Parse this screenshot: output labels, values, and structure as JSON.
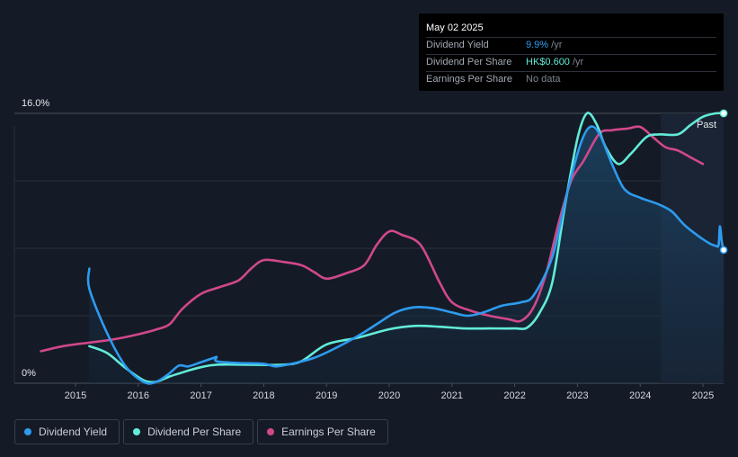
{
  "tooltip": {
    "date": "May 02 2025",
    "rows": [
      {
        "label": "Dividend Yield",
        "value": "9.9%",
        "suffix": " /yr"
      },
      {
        "label": "Dividend Per Share",
        "value": "HK$0.600",
        "suffix": " /yr"
      },
      {
        "label": "Earnings Per Share",
        "value": "No data",
        "suffix": ""
      }
    ]
  },
  "legend": [
    {
      "label": "Dividend Yield",
      "color": "#2d9bef"
    },
    {
      "label": "Dividend Per Share",
      "color": "#62ebd8"
    },
    {
      "label": "Earnings Per Share",
      "color": "#d0488b"
    }
  ],
  "chart_data": {
    "type": "line",
    "y_axis_labels": {
      "top": "16.0%",
      "bottom": "0%"
    },
    "ylim": [
      0,
      16
    ],
    "xlim": [
      2014.4,
      2025.33
    ],
    "x_ticks": [
      "2015",
      "2016",
      "2017",
      "2018",
      "2019",
      "2020",
      "2021",
      "2022",
      "2023",
      "2024",
      "2025"
    ],
    "past_label": "Past",
    "grid": true,
    "series": [
      {
        "name": "Dividend Yield",
        "color": "#2d9bef",
        "points": [
          [
            2015.22,
            6.8
          ],
          [
            2015.22,
            5.6
          ],
          [
            2015.5,
            3.0
          ],
          [
            2015.8,
            1.0
          ],
          [
            2016.1,
            0.05
          ],
          [
            2016.3,
            0.1
          ],
          [
            2016.5,
            0.6
          ],
          [
            2016.65,
            1.05
          ],
          [
            2016.8,
            1.0
          ],
          [
            2017.0,
            1.25
          ],
          [
            2017.2,
            1.5
          ],
          [
            2017.25,
            1.55
          ],
          [
            2017.25,
            1.3
          ],
          [
            2017.6,
            1.2
          ],
          [
            2018.0,
            1.15
          ],
          [
            2018.2,
            1.0
          ],
          [
            2018.5,
            1.2
          ],
          [
            2018.8,
            1.5
          ],
          [
            2019.1,
            2.0
          ],
          [
            2019.5,
            2.8
          ],
          [
            2019.8,
            3.5
          ],
          [
            2020.1,
            4.2
          ],
          [
            2020.4,
            4.5
          ],
          [
            2020.7,
            4.45
          ],
          [
            2021.0,
            4.2
          ],
          [
            2021.25,
            4.0
          ],
          [
            2021.5,
            4.2
          ],
          [
            2021.8,
            4.6
          ],
          [
            2022.1,
            4.8
          ],
          [
            2022.3,
            5.2
          ],
          [
            2022.6,
            7.5
          ],
          [
            2022.85,
            11.5
          ],
          [
            2023.05,
            14.2
          ],
          [
            2023.2,
            15.2
          ],
          [
            2023.35,
            14.8
          ],
          [
            2023.55,
            13.0
          ],
          [
            2023.75,
            11.5
          ],
          [
            2024.0,
            11.0
          ],
          [
            2024.3,
            10.6
          ],
          [
            2024.5,
            10.2
          ],
          [
            2024.7,
            9.4
          ],
          [
            2024.9,
            8.8
          ],
          [
            2025.1,
            8.3
          ],
          [
            2025.2,
            8.15
          ],
          [
            2025.25,
            8.2
          ],
          [
            2025.27,
            9.3
          ],
          [
            2025.3,
            8.4
          ],
          [
            2025.33,
            7.9
          ]
        ]
      },
      {
        "name": "Dividend Per Share",
        "color": "#62ebd8",
        "points": [
          [
            2015.22,
            2.2
          ],
          [
            2015.5,
            1.8
          ],
          [
            2015.8,
            0.9
          ],
          [
            2016.1,
            0.15
          ],
          [
            2016.3,
            0.1
          ],
          [
            2016.5,
            0.4
          ],
          [
            2016.8,
            0.75
          ],
          [
            2017.0,
            0.95
          ],
          [
            2017.25,
            1.1
          ],
          [
            2017.8,
            1.1
          ],
          [
            2018.3,
            1.1
          ],
          [
            2018.6,
            1.3
          ],
          [
            2019.0,
            2.3
          ],
          [
            2019.5,
            2.7
          ],
          [
            2020.0,
            3.2
          ],
          [
            2020.4,
            3.4
          ],
          [
            2020.8,
            3.35
          ],
          [
            2021.2,
            3.25
          ],
          [
            2021.6,
            3.25
          ],
          [
            2022.0,
            3.25
          ],
          [
            2022.2,
            3.3
          ],
          [
            2022.4,
            4.2
          ],
          [
            2022.6,
            6.0
          ],
          [
            2022.8,
            10.5
          ],
          [
            2023.0,
            14.5
          ],
          [
            2023.15,
            16.0
          ],
          [
            2023.3,
            15.4
          ],
          [
            2023.45,
            14.0
          ],
          [
            2023.65,
            13.0
          ],
          [
            2023.85,
            13.6
          ],
          [
            2024.1,
            14.6
          ],
          [
            2024.3,
            14.75
          ],
          [
            2024.6,
            14.75
          ],
          [
            2024.8,
            15.3
          ],
          [
            2025.0,
            15.8
          ],
          [
            2025.2,
            16.0
          ],
          [
            2025.33,
            16.0
          ]
        ]
      },
      {
        "name": "Earnings Per Share",
        "color": "#d0488b",
        "points": [
          [
            2014.45,
            1.9
          ],
          [
            2014.8,
            2.2
          ],
          [
            2015.2,
            2.4
          ],
          [
            2015.6,
            2.6
          ],
          [
            2016.0,
            2.9
          ],
          [
            2016.3,
            3.2
          ],
          [
            2016.5,
            3.5
          ],
          [
            2016.7,
            4.4
          ],
          [
            2017.0,
            5.3
          ],
          [
            2017.3,
            5.7
          ],
          [
            2017.6,
            6.1
          ],
          [
            2017.8,
            6.8
          ],
          [
            2018.0,
            7.3
          ],
          [
            2018.3,
            7.2
          ],
          [
            2018.6,
            7.0
          ],
          [
            2018.8,
            6.6
          ],
          [
            2019.0,
            6.2
          ],
          [
            2019.3,
            6.5
          ],
          [
            2019.6,
            7.0
          ],
          [
            2019.8,
            8.2
          ],
          [
            2020.0,
            9.0
          ],
          [
            2020.2,
            8.8
          ],
          [
            2020.5,
            8.2
          ],
          [
            2020.8,
            6.0
          ],
          [
            2021.0,
            4.8
          ],
          [
            2021.3,
            4.3
          ],
          [
            2021.6,
            4.0
          ],
          [
            2021.9,
            3.8
          ],
          [
            2022.1,
            3.7
          ],
          [
            2022.3,
            4.5
          ],
          [
            2022.5,
            6.5
          ],
          [
            2022.7,
            9.5
          ],
          [
            2022.9,
            12.0
          ],
          [
            2023.1,
            13.2
          ],
          [
            2023.35,
            14.8
          ],
          [
            2023.55,
            15.0
          ],
          [
            2023.8,
            15.1
          ],
          [
            2024.0,
            15.2
          ],
          [
            2024.2,
            14.6
          ],
          [
            2024.4,
            14.0
          ],
          [
            2024.6,
            13.8
          ],
          [
            2024.8,
            13.4
          ],
          [
            2025.0,
            13.0
          ]
        ]
      }
    ]
  }
}
